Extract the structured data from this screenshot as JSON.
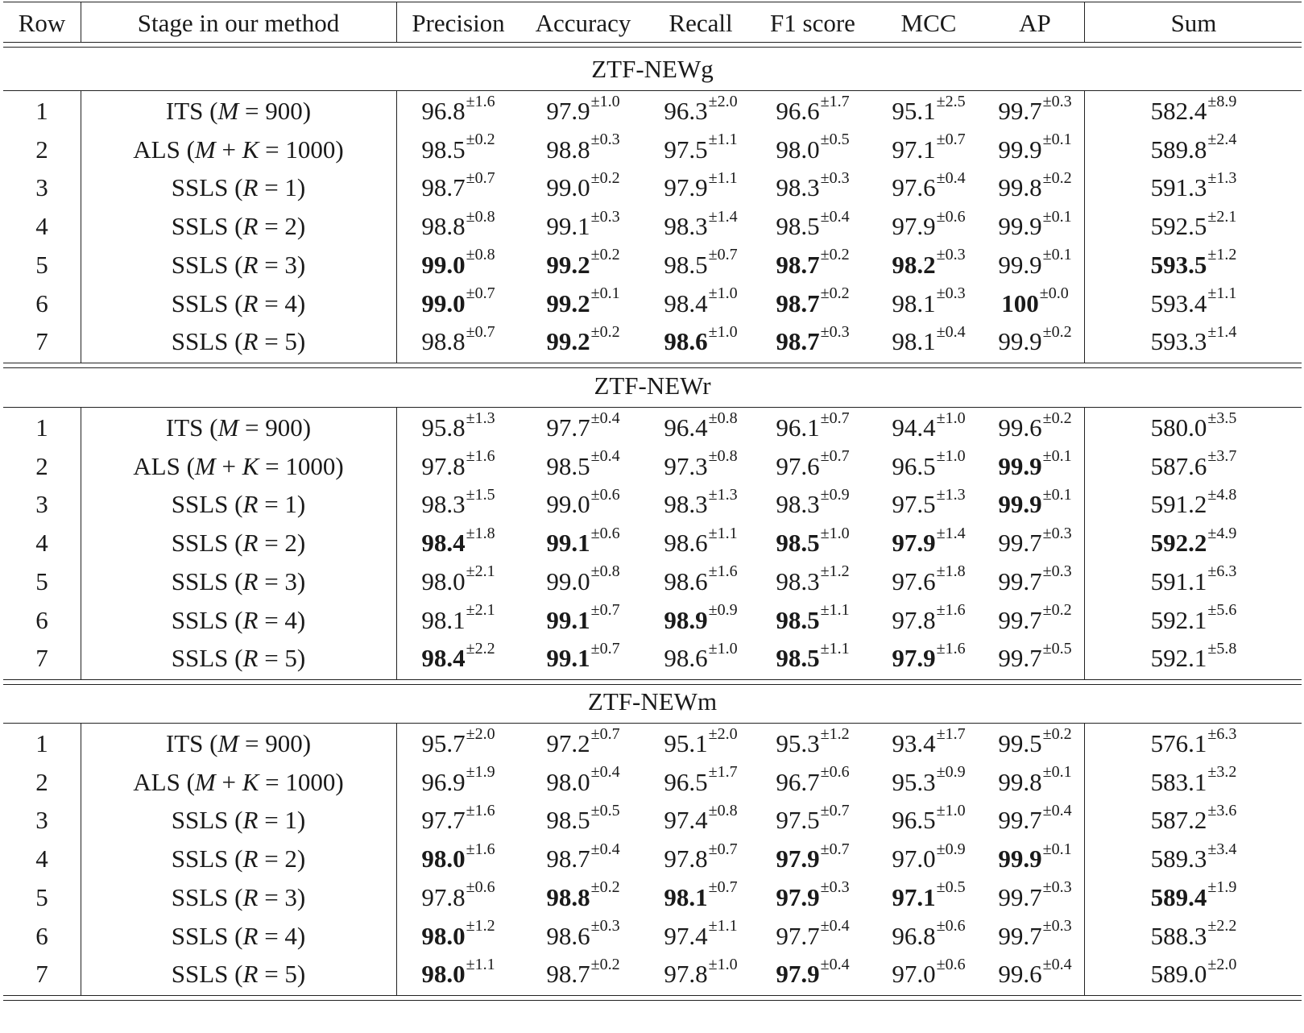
{
  "columns": [
    "Row",
    "Stage in our method",
    "Precision",
    "Accuracy",
    "Recall",
    "F1 score",
    "MCC",
    "AP",
    "Sum"
  ],
  "stages": [
    {
      "name": "ITS",
      "param": "M = 900"
    },
    {
      "name": "ALS",
      "param": "M + K = 1000"
    },
    {
      "name": "SSLS",
      "param": "R = 1"
    },
    {
      "name": "SSLS",
      "param": "R = 2"
    },
    {
      "name": "SSLS",
      "param": "R = 3"
    },
    {
      "name": "SSLS",
      "param": "R = 4"
    },
    {
      "name": "SSLS",
      "param": "R = 5"
    }
  ],
  "sections": [
    {
      "title": "ZTF-NEWg",
      "rows": [
        {
          "row": "1",
          "cells": [
            [
              "96.8",
              "±1.6",
              0
            ],
            [
              "97.9",
              "±1.0",
              0
            ],
            [
              "96.3",
              "±2.0",
              0
            ],
            [
              "96.6",
              "±1.7",
              0
            ],
            [
              "95.1",
              "±2.5",
              0
            ],
            [
              "99.7",
              "±0.3",
              0
            ],
            [
              "582.4",
              "±8.9",
              0
            ]
          ]
        },
        {
          "row": "2",
          "cells": [
            [
              "98.5",
              "±0.2",
              0
            ],
            [
              "98.8",
              "±0.3",
              0
            ],
            [
              "97.5",
              "±1.1",
              0
            ],
            [
              "98.0",
              "±0.5",
              0
            ],
            [
              "97.1",
              "±0.7",
              0
            ],
            [
              "99.9",
              "±0.1",
              0
            ],
            [
              "589.8",
              "±2.4",
              0
            ]
          ]
        },
        {
          "row": "3",
          "cells": [
            [
              "98.7",
              "±0.7",
              0
            ],
            [
              "99.0",
              "±0.2",
              0
            ],
            [
              "97.9",
              "±1.1",
              0
            ],
            [
              "98.3",
              "±0.3",
              0
            ],
            [
              "97.6",
              "±0.4",
              0
            ],
            [
              "99.8",
              "±0.2",
              0
            ],
            [
              "591.3",
              "±1.3",
              0
            ]
          ]
        },
        {
          "row": "4",
          "cells": [
            [
              "98.8",
              "±0.8",
              0
            ],
            [
              "99.1",
              "±0.3",
              0
            ],
            [
              "98.3",
              "±1.4",
              0
            ],
            [
              "98.5",
              "±0.4",
              0
            ],
            [
              "97.9",
              "±0.6",
              0
            ],
            [
              "99.9",
              "±0.1",
              0
            ],
            [
              "592.5",
              "±2.1",
              0
            ]
          ]
        },
        {
          "row": "5",
          "cells": [
            [
              "99.0",
              "±0.8",
              1
            ],
            [
              "99.2",
              "±0.2",
              1
            ],
            [
              "98.5",
              "±0.7",
              0
            ],
            [
              "98.7",
              "±0.2",
              1
            ],
            [
              "98.2",
              "±0.3",
              1
            ],
            [
              "99.9",
              "±0.1",
              0
            ],
            [
              "593.5",
              "±1.2",
              1
            ]
          ]
        },
        {
          "row": "6",
          "cells": [
            [
              "99.0",
              "±0.7",
              1
            ],
            [
              "99.2",
              "±0.1",
              1
            ],
            [
              "98.4",
              "±1.0",
              0
            ],
            [
              "98.7",
              "±0.2",
              1
            ],
            [
              "98.1",
              "±0.3",
              0
            ],
            [
              "100",
              "±0.0",
              1
            ],
            [
              "593.4",
              "±1.1",
              0
            ]
          ]
        },
        {
          "row": "7",
          "cells": [
            [
              "98.8",
              "±0.7",
              0
            ],
            [
              "99.2",
              "±0.2",
              1
            ],
            [
              "98.6",
              "±1.0",
              1
            ],
            [
              "98.7",
              "±0.3",
              1
            ],
            [
              "98.1",
              "±0.4",
              0
            ],
            [
              "99.9",
              "±0.2",
              0
            ],
            [
              "593.3",
              "±1.4",
              0
            ]
          ]
        }
      ]
    },
    {
      "title": "ZTF-NEWr",
      "rows": [
        {
          "row": "1",
          "cells": [
            [
              "95.8",
              "±1.3",
              0
            ],
            [
              "97.7",
              "±0.4",
              0
            ],
            [
              "96.4",
              "±0.8",
              0
            ],
            [
              "96.1",
              "±0.7",
              0
            ],
            [
              "94.4",
              "±1.0",
              0
            ],
            [
              "99.6",
              "±0.2",
              0
            ],
            [
              "580.0",
              "±3.5",
              0
            ]
          ]
        },
        {
          "row": "2",
          "cells": [
            [
              "97.8",
              "±1.6",
              0
            ],
            [
              "98.5",
              "±0.4",
              0
            ],
            [
              "97.3",
              "±0.8",
              0
            ],
            [
              "97.6",
              "±0.7",
              0
            ],
            [
              "96.5",
              "±1.0",
              0
            ],
            [
              "99.9",
              "±0.1",
              1
            ],
            [
              "587.6",
              "±3.7",
              0
            ]
          ]
        },
        {
          "row": "3",
          "cells": [
            [
              "98.3",
              "±1.5",
              0
            ],
            [
              "99.0",
              "±0.6",
              0
            ],
            [
              "98.3",
              "±1.3",
              0
            ],
            [
              "98.3",
              "±0.9",
              0
            ],
            [
              "97.5",
              "±1.3",
              0
            ],
            [
              "99.9",
              "±0.1",
              1
            ],
            [
              "591.2",
              "±4.8",
              0
            ]
          ]
        },
        {
          "row": "4",
          "cells": [
            [
              "98.4",
              "±1.8",
              1
            ],
            [
              "99.1",
              "±0.6",
              1
            ],
            [
              "98.6",
              "±1.1",
              0
            ],
            [
              "98.5",
              "±1.0",
              1
            ],
            [
              "97.9",
              "±1.4",
              1
            ],
            [
              "99.7",
              "±0.3",
              0
            ],
            [
              "592.2",
              "±4.9",
              1
            ]
          ]
        },
        {
          "row": "5",
          "cells": [
            [
              "98.0",
              "±2.1",
              0
            ],
            [
              "99.0",
              "±0.8",
              0
            ],
            [
              "98.6",
              "±1.6",
              0
            ],
            [
              "98.3",
              "±1.2",
              0
            ],
            [
              "97.6",
              "±1.8",
              0
            ],
            [
              "99.7",
              "±0.3",
              0
            ],
            [
              "591.1",
              "±6.3",
              0
            ]
          ]
        },
        {
          "row": "6",
          "cells": [
            [
              "98.1",
              "±2.1",
              0
            ],
            [
              "99.1",
              "±0.7",
              1
            ],
            [
              "98.9",
              "±0.9",
              1
            ],
            [
              "98.5",
              "±1.1",
              1
            ],
            [
              "97.8",
              "±1.6",
              0
            ],
            [
              "99.7",
              "±0.2",
              0
            ],
            [
              "592.1",
              "±5.6",
              0
            ]
          ]
        },
        {
          "row": "7",
          "cells": [
            [
              "98.4",
              "±2.2",
              1
            ],
            [
              "99.1",
              "±0.7",
              1
            ],
            [
              "98.6",
              "±1.0",
              0
            ],
            [
              "98.5",
              "±1.1",
              1
            ],
            [
              "97.9",
              "±1.6",
              1
            ],
            [
              "99.7",
              "±0.5",
              0
            ],
            [
              "592.1",
              "±5.8",
              0
            ]
          ]
        }
      ]
    },
    {
      "title": "ZTF-NEWm",
      "rows": [
        {
          "row": "1",
          "cells": [
            [
              "95.7",
              "±2.0",
              0
            ],
            [
              "97.2",
              "±0.7",
              0
            ],
            [
              "95.1",
              "±2.0",
              0
            ],
            [
              "95.3",
              "±1.2",
              0
            ],
            [
              "93.4",
              "±1.7",
              0
            ],
            [
              "99.5",
              "±0.2",
              0
            ],
            [
              "576.1",
              "±6.3",
              0
            ]
          ]
        },
        {
          "row": "2",
          "cells": [
            [
              "96.9",
              "±1.9",
              0
            ],
            [
              "98.0",
              "±0.4",
              0
            ],
            [
              "96.5",
              "±1.7",
              0
            ],
            [
              "96.7",
              "±0.6",
              0
            ],
            [
              "95.3",
              "±0.9",
              0
            ],
            [
              "99.8",
              "±0.1",
              0
            ],
            [
              "583.1",
              "±3.2",
              0
            ]
          ]
        },
        {
          "row": "3",
          "cells": [
            [
              "97.7",
              "±1.6",
              0
            ],
            [
              "98.5",
              "±0.5",
              0
            ],
            [
              "97.4",
              "±0.8",
              0
            ],
            [
              "97.5",
              "±0.7",
              0
            ],
            [
              "96.5",
              "±1.0",
              0
            ],
            [
              "99.7",
              "±0.4",
              0
            ],
            [
              "587.2",
              "±3.6",
              0
            ]
          ]
        },
        {
          "row": "4",
          "cells": [
            [
              "98.0",
              "±1.6",
              1
            ],
            [
              "98.7",
              "±0.4",
              0
            ],
            [
              "97.8",
              "±0.7",
              0
            ],
            [
              "97.9",
              "±0.7",
              1
            ],
            [
              "97.0",
              "±0.9",
              0
            ],
            [
              "99.9",
              "±0.1",
              1
            ],
            [
              "589.3",
              "±3.4",
              0
            ]
          ]
        },
        {
          "row": "5",
          "cells": [
            [
              "97.8",
              "±0.6",
              0
            ],
            [
              "98.8",
              "±0.2",
              1
            ],
            [
              "98.1",
              "±0.7",
              1
            ],
            [
              "97.9",
              "±0.3",
              1
            ],
            [
              "97.1",
              "±0.5",
              1
            ],
            [
              "99.7",
              "±0.3",
              0
            ],
            [
              "589.4",
              "±1.9",
              1
            ]
          ]
        },
        {
          "row": "6",
          "cells": [
            [
              "98.0",
              "±1.2",
              1
            ],
            [
              "98.6",
              "±0.3",
              0
            ],
            [
              "97.4",
              "±1.1",
              0
            ],
            [
              "97.7",
              "±0.4",
              0
            ],
            [
              "96.8",
              "±0.6",
              0
            ],
            [
              "99.7",
              "±0.3",
              0
            ],
            [
              "588.3",
              "±2.2",
              0
            ]
          ]
        },
        {
          "row": "7",
          "cells": [
            [
              "98.0",
              "±1.1",
              1
            ],
            [
              "98.7",
              "±0.2",
              0
            ],
            [
              "97.8",
              "±1.0",
              0
            ],
            [
              "97.9",
              "±0.4",
              1
            ],
            [
              "97.0",
              "±0.6",
              0
            ],
            [
              "99.6",
              "±0.4",
              0
            ],
            [
              "589.0",
              "±2.0",
              0
            ]
          ]
        }
      ]
    }
  ]
}
